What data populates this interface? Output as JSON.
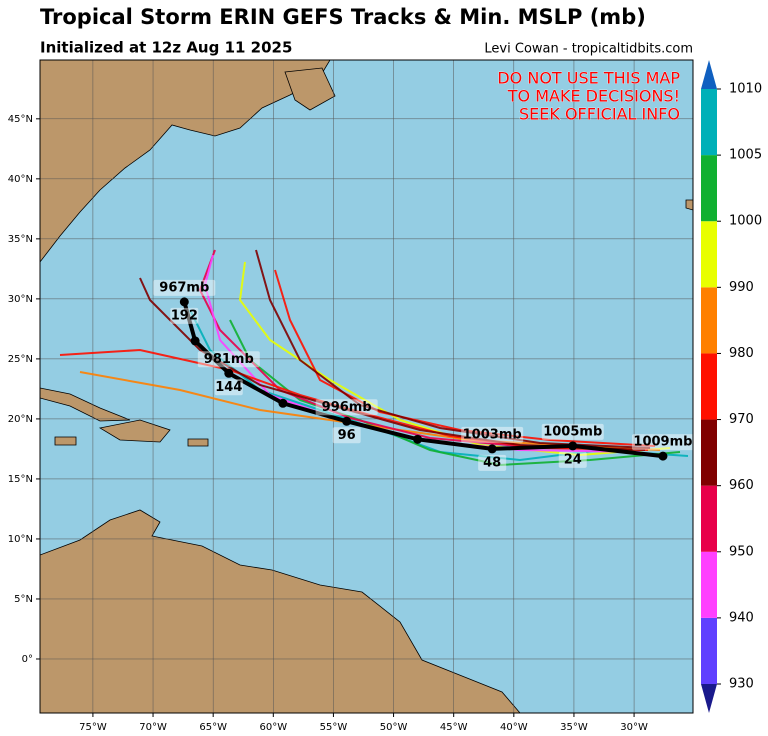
{
  "header": {
    "title": "Tropical Storm ERIN GEFS Tracks & Min. MSLP (mb)",
    "subtitle": "Initialized at 12z Aug 11 2025",
    "credit": "Levi Cowan - tropicaltidbits.com"
  },
  "warning": [
    "DO NOT USE THIS MAP",
    "TO MAKE DECISIONS!",
    "SEEK OFFICIAL INFO"
  ],
  "map": {
    "lonlim": [
      -79.4,
      -25.1
    ],
    "latlim": [
      -4.5,
      49.9
    ],
    "lat_ticks": [
      {
        "value": 45,
        "label": "45°N"
      },
      {
        "value": 40,
        "label": "40°N"
      },
      {
        "value": 35,
        "label": "35°N"
      },
      {
        "value": 30,
        "label": "30°N"
      },
      {
        "value": 25,
        "label": "25°N"
      },
      {
        "value": 20,
        "label": "20°N"
      },
      {
        "value": 15,
        "label": "15°N"
      },
      {
        "value": 10,
        "label": "10°N"
      },
      {
        "value": 5,
        "label": "5°N"
      },
      {
        "value": 0,
        "label": "0°"
      }
    ],
    "lon_ticks": [
      {
        "value": -75,
        "label": "75°W"
      },
      {
        "value": -70,
        "label": "70°W"
      },
      {
        "value": -65,
        "label": "65°W"
      },
      {
        "value": -60,
        "label": "60°W"
      },
      {
        "value": -55,
        "label": "55°W"
      },
      {
        "value": -50,
        "label": "50°W"
      },
      {
        "value": -45,
        "label": "45°W"
      },
      {
        "value": -40,
        "label": "40°W"
      },
      {
        "value": -35,
        "label": "35°W"
      },
      {
        "value": -30,
        "label": "30°W"
      }
    ],
    "mean_track": {
      "color": "#000000",
      "lon": [
        -27.6,
        -35.1,
        -41.8,
        -48.0,
        -53.9,
        -59.2,
        -63.7,
        -66.5,
        -67.4
      ],
      "lat": [
        16.9,
        17.75,
        17.5,
        18.3,
        19.8,
        21.3,
        23.8,
        26.5,
        29.75
      ],
      "pressure_labels": [
        "1009mb",
        "1005mb",
        "1003mb",
        null,
        "996mb",
        null,
        "981mb",
        null,
        "967mb"
      ],
      "hour_labels": [
        null,
        "24",
        "48",
        null,
        "96",
        null,
        "144",
        null,
        "192"
      ]
    }
  },
  "colorbar": {
    "ticks": [
      930,
      940,
      950,
      960,
      970,
      980,
      990,
      1000,
      1005,
      1010
    ],
    "colors": [
      "#1a1a8c",
      "#6040ff",
      "#ff40ff",
      "#e8004a",
      "#800000",
      "#ff1000",
      "#ff8000",
      "#e8ff00",
      "#10b030",
      "#00b0b8",
      "#1060c0"
    ]
  }
}
